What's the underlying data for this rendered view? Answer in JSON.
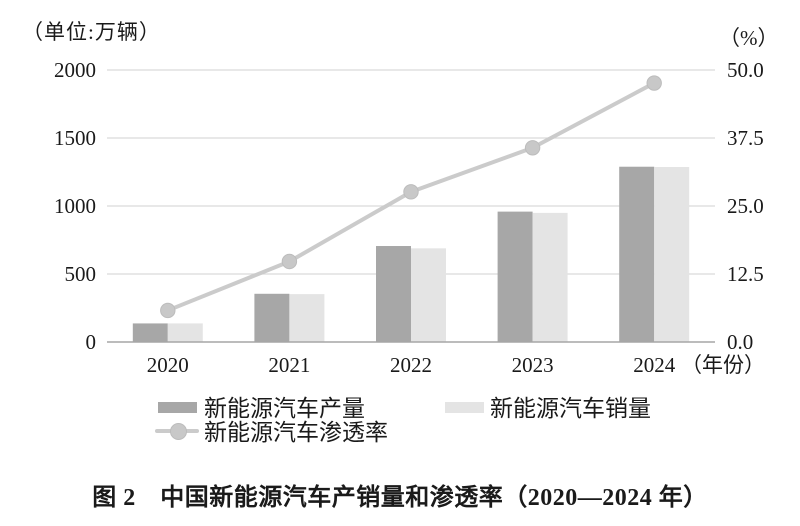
{
  "page": {
    "unit_label": "（单位:万辆）",
    "percent_label": "（%）",
    "caption": "图 2　中国新能源汽车产销量和渗透率（2020—2024 年）"
  },
  "legend": {
    "production_label": "新能源汽车产量",
    "sales_label": "新能源汽车销量",
    "penetration_label": "新能源汽车渗透率"
  },
  "colors": {
    "production_bar": "#a7a7a7",
    "sales_bar": "#e4e4e4",
    "line": "#cbcbcb",
    "marker_fill": "#c8c8c8",
    "marker_stroke": "#bcbcbc",
    "gridline": "#d9d9d9",
    "axis_line": "#a6a6a6",
    "text": "#1a1a1a"
  },
  "chart_data": {
    "type": "bar",
    "subtype": "grouped-bars-with-line",
    "title": "图 2　中国新能源汽车产销量和渗透率（2020—2024 年）",
    "categories": [
      "2020",
      "2021",
      "2022",
      "2023",
      "2024"
    ],
    "series": [
      {
        "name": "新能源汽车产量",
        "type": "bar",
        "axis": "left",
        "values": [
          136.6,
          354.5,
          705.8,
          958.7,
          1288.8
        ]
      },
      {
        "name": "新能源汽车销量",
        "type": "bar",
        "axis": "left",
        "values": [
          136.7,
          352.1,
          688.7,
          949.5,
          1286.6
        ]
      },
      {
        "name": "新能源汽车渗透率",
        "type": "line",
        "axis": "right",
        "values": [
          5.8,
          14.8,
          27.6,
          35.7,
          47.6
        ]
      }
    ],
    "left_axis": {
      "label": "（单位:万辆）",
      "range": [
        0,
        2000
      ],
      "ticks": [
        0,
        500,
        1000,
        1500,
        2000
      ],
      "tick_labels": [
        "0",
        "500",
        "1000",
        "1500",
        "2000"
      ]
    },
    "right_axis": {
      "label": "（%）",
      "range": [
        0,
        50
      ],
      "ticks": [
        0,
        12.5,
        25,
        37.5,
        50
      ],
      "tick_labels": [
        "0.0",
        "12.5",
        "25.0",
        "37.5",
        "50.0"
      ]
    },
    "x_axis": {
      "suffix_label": "（年份）"
    },
    "grid": true,
    "legend_position": "bottom"
  }
}
